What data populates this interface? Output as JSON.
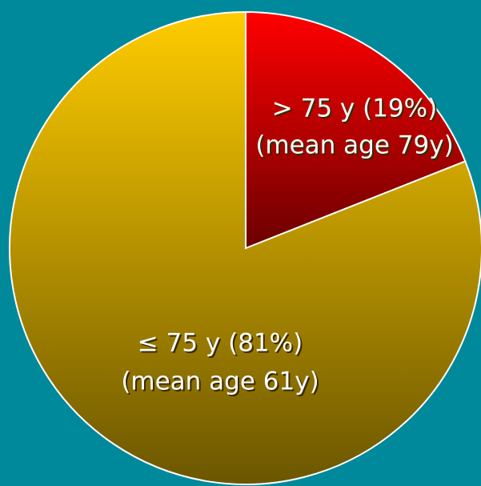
{
  "chart_data": {
    "type": "pie",
    "categories": [
      "> 75 y (19%)",
      "≤ 75 y (81%)"
    ],
    "subtitles": [
      "(mean age 79y)",
      "(mean age 61y)"
    ],
    "values": [
      19,
      81
    ],
    "colors": [
      "#ff0000",
      "#ffcc00"
    ]
  }
}
